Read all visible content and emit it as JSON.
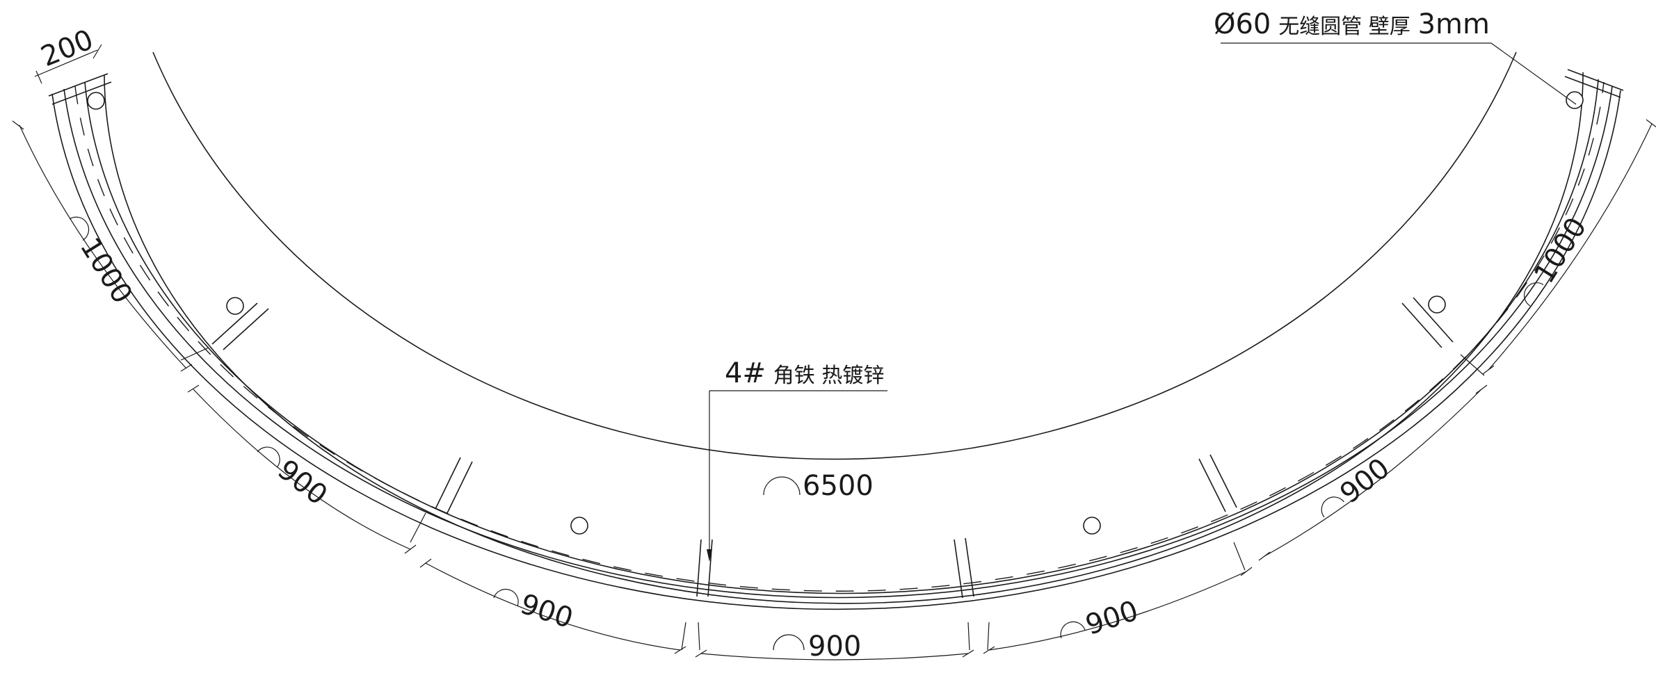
{
  "drawing": {
    "pipe_note": {
      "prefix": "Ø60",
      "text": "无缝圆管 壁厚",
      "suffix": "3mm"
    },
    "angle_note": {
      "prefix": "4#",
      "text": "角铁 热镀锌"
    },
    "width_dim": "200",
    "inner_radius_dim": "6500",
    "arc_dims": [
      "1000",
      "900",
      "900",
      "900",
      "900",
      "900",
      "1000"
    ]
  }
}
